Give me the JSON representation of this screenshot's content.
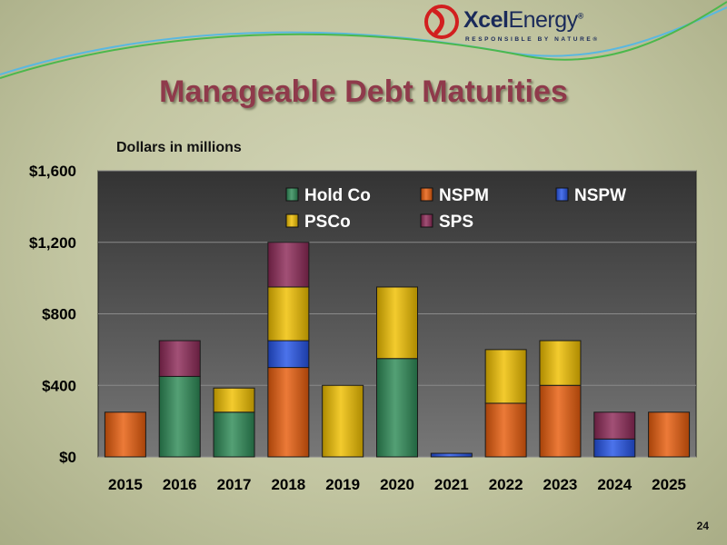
{
  "brand": {
    "name_bold": "Xcel",
    "name_light": "Energy",
    "registered": "®",
    "tagline": "RESPONSIBLE BY NATURE®"
  },
  "slide": {
    "title": "Manageable Debt Maturities",
    "subtitle": "Dollars in millions",
    "page_number": "24"
  },
  "colors": {
    "Hold Co": "#2e8b57",
    "NSPM": "#e85d0c",
    "NSPW": "#2554e6",
    "PSCo": "#f0c000",
    "SPS": "#8e2a58",
    "plot_background": "#444444",
    "title": "#8f3a4b"
  },
  "chart_data": {
    "type": "bar",
    "stacked": true,
    "categories": [
      "2015",
      "2016",
      "2017",
      "2018",
      "2019",
      "2020",
      "2021",
      "2022",
      "2023",
      "2024",
      "2025"
    ],
    "series": [
      {
        "name": "Hold Co",
        "values": [
          0,
          450,
          250,
          0,
          0,
          550,
          0,
          0,
          0,
          0,
          0
        ]
      },
      {
        "name": "NSPM",
        "values": [
          250,
          0,
          0,
          500,
          0,
          0,
          0,
          300,
          400,
          0,
          250
        ]
      },
      {
        "name": "NSPW",
        "values": [
          0,
          0,
          0,
          150,
          0,
          0,
          20,
          0,
          0,
          100,
          0
        ]
      },
      {
        "name": "PSCo",
        "values": [
          0,
          0,
          135,
          300,
          400,
          400,
          0,
          300,
          250,
          0,
          0
        ]
      },
      {
        "name": "SPS",
        "values": [
          0,
          200,
          0,
          250,
          0,
          0,
          0,
          0,
          0,
          150,
          0
        ]
      }
    ],
    "ylim": [
      0,
      1600
    ],
    "yticks": [
      0,
      400,
      800,
      1200,
      1600
    ],
    "ytick_labels": [
      "$0",
      "$400",
      "$800",
      "$1,200",
      "$1,600"
    ],
    "grid": true,
    "legend_placement": "top"
  }
}
